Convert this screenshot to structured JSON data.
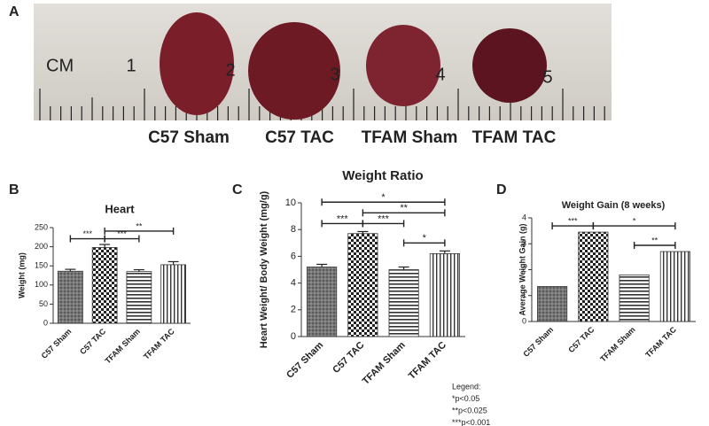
{
  "photo": {
    "panel": "A",
    "ruler_unit": "CM",
    "ruler_labels": [
      "1",
      "2",
      "3",
      "4",
      "5"
    ],
    "sample_labels": [
      "C57 Sham",
      "C57 TAC",
      "TFAM Sham",
      "TFAM TAC"
    ]
  },
  "chart_data": [
    {
      "type": "bar",
      "panel": "B",
      "title": "Heart",
      "ylabel": "Weight (mg)",
      "categories": [
        "C57 Sham",
        "C57 TAC",
        "TFAM Sham",
        "TFAM TAC"
      ],
      "values": [
        136,
        198,
        135,
        153
      ],
      "errors": [
        5,
        8,
        5,
        8
      ],
      "color": "#555555",
      "ylim": [
        0,
        250
      ],
      "yticks": [
        0,
        50,
        100,
        150,
        200,
        250
      ],
      "brackets": [
        {
          "from": 0,
          "to": 1,
          "label": "***"
        },
        {
          "from": 1,
          "to": 2,
          "label": "***"
        },
        {
          "from": 1,
          "to": 3,
          "label": "**"
        }
      ]
    },
    {
      "type": "bar",
      "panel": "C",
      "title": "Weight Ratio",
      "ylabel": "Heart Weight/ Body Weight (mg/g)",
      "categories": [
        "C57 Sham",
        "C57 TAC",
        "TFAM Sham",
        "TFAM TAC"
      ],
      "values": [
        5.2,
        7.7,
        5.0,
        6.2
      ],
      "errors": [
        0.2,
        0.15,
        0.2,
        0.2
      ],
      "color": "#555555",
      "ylim": [
        0,
        10
      ],
      "yticks": [
        0,
        2,
        4,
        6,
        8,
        10
      ],
      "brackets": [
        {
          "from": 0,
          "to": 1,
          "label": "***"
        },
        {
          "from": 1,
          "to": 2,
          "label": "***"
        },
        {
          "from": 1,
          "to": 3,
          "label": "**"
        },
        {
          "from": 0,
          "to": 3,
          "label": "*"
        },
        {
          "from": 2,
          "to": 3,
          "label": "*"
        }
      ],
      "legend_lines": [
        "Legend:",
        "*p<0.05",
        "**p<0.025",
        "***p<0.001"
      ]
    },
    {
      "type": "bar",
      "panel": "D",
      "title": "Weight Gain (8 weeks)",
      "ylabel": "Average Weight Gain (g)",
      "categories": [
        "C57 Sham",
        "C57 TAC",
        "TFAM Sham",
        "TFAM TAC"
      ],
      "values": [
        1.35,
        3.45,
        1.8,
        2.7
      ],
      "color": "#555555",
      "ylim": [
        0,
        4
      ],
      "yticks": [
        0,
        1,
        2,
        3,
        4
      ],
      "brackets": [
        {
          "from": 0,
          "to": 1,
          "label": "***"
        },
        {
          "from": 1,
          "to": 3,
          "label": "*"
        },
        {
          "from": 2,
          "to": 3,
          "label": "**"
        }
      ]
    }
  ]
}
